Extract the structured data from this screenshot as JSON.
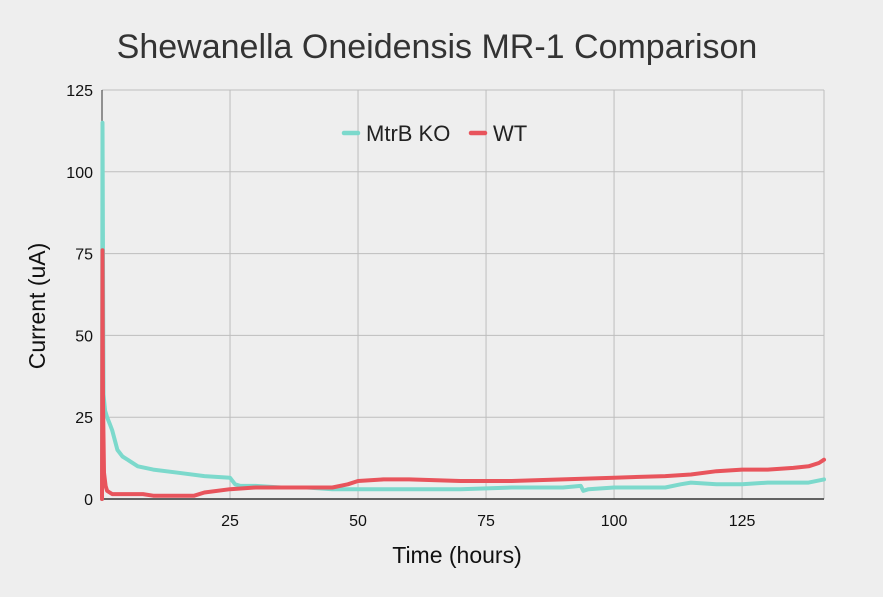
{
  "chart_data": {
    "type": "line",
    "title": "Shewanella Oneidensis MR-1 Comparison",
    "xlabel": "Time (hours)",
    "ylabel": "Current (uA)",
    "xlim": [
      0,
      141
    ],
    "ylim": [
      0,
      125
    ],
    "xticks": [
      25,
      50,
      75,
      100,
      125
    ],
    "yticks": [
      0,
      25,
      50,
      75,
      100,
      125
    ],
    "xtick_labels": [
      "25",
      "50",
      "75",
      "100",
      "125"
    ],
    "ytick_labels": [
      "0",
      "25",
      "50",
      "75",
      "100",
      "125"
    ],
    "grid": true,
    "legend_position": "top-center",
    "series": [
      {
        "name": "MtrB KO",
        "color": "#7cd9cc",
        "x": [
          0,
          0.1,
          0.3,
          0.6,
          1,
          1.5,
          2,
          3,
          4,
          5,
          7,
          10,
          15,
          20,
          25,
          26,
          27,
          30,
          35,
          40,
          45,
          50,
          55,
          60,
          70,
          80,
          90,
          93.5,
          94,
          95,
          100,
          105,
          110,
          113,
          115,
          120,
          125,
          130,
          135,
          138,
          141
        ],
        "y": [
          0,
          115,
          32,
          27,
          25,
          23,
          21,
          15,
          13,
          12,
          10,
          9,
          8,
          7,
          6.5,
          4.5,
          4,
          4,
          3.5,
          3.5,
          3,
          3,
          3,
          3,
          3,
          3.5,
          3.5,
          4,
          2.5,
          3,
          3.5,
          3.5,
          3.5,
          4.5,
          5,
          4.5,
          4.5,
          5,
          5,
          5,
          6
        ]
      },
      {
        "name": "WT",
        "color": "#e8545c",
        "x": [
          0,
          0.1,
          0.2,
          0.4,
          0.7,
          1,
          1.5,
          2,
          4,
          6,
          8,
          10,
          12,
          15,
          18,
          20,
          25,
          30,
          35,
          40,
          45,
          48,
          50,
          55,
          60,
          70,
          80,
          90,
          100,
          110,
          115,
          120,
          125,
          130,
          135,
          138,
          140,
          141
        ],
        "y": [
          0,
          76,
          30,
          8,
          4,
          2.5,
          2,
          1.5,
          1.5,
          1.5,
          1.5,
          1,
          1,
          1,
          1,
          2,
          3,
          3.5,
          3.5,
          3.5,
          3.5,
          4.5,
          5.5,
          6,
          6,
          5.5,
          5.5,
          6,
          6.5,
          7,
          7.5,
          8.5,
          9,
          9,
          9.5,
          10,
          11,
          12
        ]
      }
    ]
  }
}
